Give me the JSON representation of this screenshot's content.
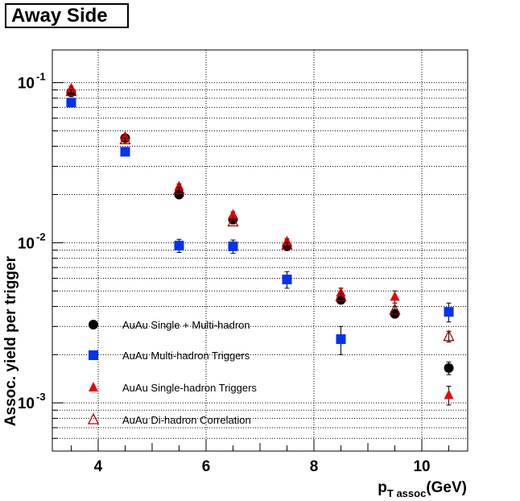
{
  "chart_data": {
    "type": "scatter",
    "title": "Away Side",
    "xlabel": {
      "main": "p",
      "sub": "T assoc",
      "unit": "(GeV)"
    },
    "ylabel": "Assoc. yield per trigger",
    "xlim": [
      3.15,
      10.85
    ],
    "ylim": [
      0.0005,
      0.16
    ],
    "yscale": "log",
    "grid": true,
    "legend_position": "bottom-left",
    "x_ticks": [
      4,
      6,
      8,
      10
    ],
    "x_tick_labels": [
      "4",
      "6",
      "8",
      "10"
    ],
    "y_ticks": [
      {
        "value": 0.1,
        "base": "10",
        "exp": "-1"
      },
      {
        "value": 0.01,
        "base": "10",
        "exp": "-2"
      },
      {
        "value": 0.001,
        "base": "10",
        "exp": "-3"
      }
    ],
    "series": [
      {
        "name": "AuAu Single + Multi-hadron",
        "marker": "circle",
        "color": "#000000",
        "x": [
          3.5,
          4.5,
          5.5,
          6.5,
          7.5,
          8.5,
          9.5,
          10.5
        ],
        "y": [
          0.087,
          0.045,
          0.02,
          0.014,
          0.0095,
          0.0044,
          0.0036,
          0.00165
        ],
        "err": [
          0.003,
          0.0015,
          0.0007,
          0.0005,
          0.0003,
          0.00015,
          0.0002,
          0.00015
        ]
      },
      {
        "name": "AuAu Multi-hadron Triggers",
        "marker": "square",
        "color": "#0033ee",
        "x": [
          3.5,
          4.5,
          5.5,
          6.5,
          7.5,
          8.5,
          9.5,
          10.5
        ],
        "y": [
          0.075,
          0.037,
          0.0096,
          0.0095,
          0.0059,
          0.0025,
          null,
          0.0037
        ],
        "err": [
          0.002,
          0.0012,
          0.0009,
          0.0009,
          0.0007,
          0.0005,
          null,
          0.0005
        ]
      },
      {
        "name": "AuAu Single-hadron Triggers",
        "marker": "triangle",
        "color": "#ee0000",
        "x": [
          3.5,
          4.5,
          5.5,
          6.5,
          7.5,
          8.5,
          9.5,
          10.5
        ],
        "y": [
          0.092,
          0.046,
          0.0225,
          0.015,
          0.0102,
          0.0049,
          0.0046,
          0.00112
        ],
        "err": [
          0.003,
          0.0015,
          0.0008,
          0.0006,
          0.0004,
          0.0003,
          0.0004,
          0.00015
        ]
      },
      {
        "name": "AuAu Di-hadron Correlation",
        "marker": "open-triangle",
        "color": "#aa0000",
        "x": [
          3.5,
          4.5,
          5.5,
          6.5,
          7.5,
          8.5,
          9.5,
          10.5
        ],
        "y": [
          0.088,
          0.044,
          0.0215,
          0.0135,
          0.0097,
          0.0046,
          0.0038,
          0.0026
        ],
        "err": [
          0.002,
          0.001,
          0.0006,
          0.0004,
          0.0003,
          0.0002,
          0.0002,
          0.0002
        ]
      }
    ]
  }
}
